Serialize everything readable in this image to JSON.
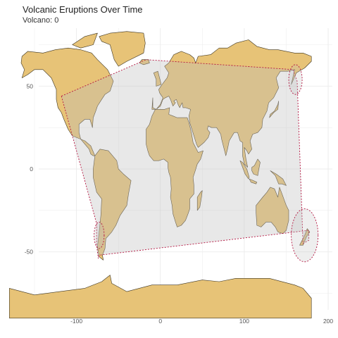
{
  "title": "Volcanic Eruptions Over Time",
  "subtitle": "Volcano: 0",
  "colors": {
    "land": "#e7c377",
    "land_stroke": "#3d3420",
    "grid": "#ebebeb",
    "hull_fill": "#bdbdbd",
    "hull_stroke": "#b3133f"
  },
  "chart_data": {
    "type": "map",
    "xlabel": "",
    "ylabel": "",
    "xlim": [
      -145,
      205
    ],
    "ylim": [
      -85,
      85
    ],
    "x_ticks": [
      -100,
      0,
      100,
      200
    ],
    "y_ticks": [
      -50,
      0,
      50
    ],
    "x_tick_labels": [
      "-100",
      "0",
      "100",
      "200"
    ],
    "y_tick_labels": [
      "-50",
      "0",
      "50"
    ],
    "grid": true,
    "hull": [
      [
        -118,
        44
      ],
      [
        -76,
        -33
      ],
      [
        -76,
        -46
      ],
      [
        -74,
        -54
      ],
      [
        -73,
        -52
      ],
      [
        177,
        -37
      ],
      [
        177,
        -43
      ],
      [
        170,
        -45
      ],
      [
        163,
        53
      ],
      [
        158,
        60
      ],
      [
        -17,
        66
      ],
      [
        -118,
        44
      ]
    ],
    "ellipses": [
      {
        "cx": -73,
        "cy": -40,
        "rx": 6,
        "ry": 8
      },
      {
        "cx": 172,
        "cy": -40,
        "rx": 16,
        "ry": 16
      },
      {
        "cx": 161,
        "cy": 54,
        "rx": 8,
        "ry": 9
      }
    ],
    "land": [
      [
        [
          -165,
          68
        ],
        [
          -158,
          71
        ],
        [
          -140,
          70
        ],
        [
          -125,
          72
        ],
        [
          -110,
          73
        ],
        [
          -95,
          72
        ],
        [
          -82,
          70
        ],
        [
          -75,
          66
        ],
        [
          -63,
          60
        ],
        [
          -56,
          53
        ],
        [
          -60,
          47
        ],
        [
          -66,
          45
        ],
        [
          -70,
          42
        ],
        [
          -75,
          38
        ],
        [
          -77,
          35
        ],
        [
          -80,
          31
        ],
        [
          -81,
          25
        ],
        [
          -84,
          30
        ],
        [
          -90,
          30
        ],
        [
          -97,
          27
        ],
        [
          -97,
          22
        ],
        [
          -95,
          18
        ],
        [
          -90,
          15
        ],
        [
          -85,
          12
        ],
        [
          -83,
          9
        ],
        [
          -80,
          8
        ],
        [
          -78,
          8
        ],
        [
          -83,
          14
        ],
        [
          -90,
          17
        ],
        [
          -105,
          20
        ],
        [
          -110,
          24
        ],
        [
          -115,
          30
        ],
        [
          -118,
          34
        ],
        [
          -122,
          37
        ],
        [
          -124,
          42
        ],
        [
          -124,
          48
        ],
        [
          -130,
          55
        ],
        [
          -140,
          60
        ],
        [
          -150,
          60
        ],
        [
          -158,
          57
        ],
        [
          -165,
          55
        ],
        [
          -162,
          60
        ],
        [
          -166,
          64
        ]
      ],
      [
        [
          -73,
          80
        ],
        [
          -60,
          82
        ],
        [
          -40,
          83
        ],
        [
          -20,
          82
        ],
        [
          -18,
          76
        ],
        [
          -20,
          70
        ],
        [
          -40,
          65
        ],
        [
          -50,
          62
        ],
        [
          -55,
          66
        ],
        [
          -60,
          75
        ],
        [
          -70,
          77
        ]
      ],
      [
        [
          -105,
          75
        ],
        [
          -90,
          80
        ],
        [
          -75,
          82
        ],
        [
          -80,
          75
        ],
        [
          -95,
          73
        ]
      ],
      [
        [
          -78,
          8
        ],
        [
          -72,
          12
        ],
        [
          -62,
          11
        ],
        [
          -52,
          5
        ],
        [
          -50,
          0
        ],
        [
          -44,
          -3
        ],
        [
          -35,
          -7
        ],
        [
          -38,
          -15
        ],
        [
          -40,
          -22
        ],
        [
          -48,
          -28
        ],
        [
          -53,
          -34
        ],
        [
          -58,
          -38
        ],
        [
          -65,
          -42
        ],
        [
          -66,
          -48
        ],
        [
          -69,
          -52
        ],
        [
          -68,
          -55
        ],
        [
          -73,
          -53
        ],
        [
          -75,
          -47
        ],
        [
          -73,
          -38
        ],
        [
          -71,
          -28
        ],
        [
          -70,
          -18
        ],
        [
          -76,
          -14
        ],
        [
          -80,
          -5
        ],
        [
          -80,
          0
        ]
      ],
      [
        [
          -10,
          36
        ],
        [
          -5,
          36
        ],
        [
          0,
          39
        ],
        [
          3,
          43
        ],
        [
          -1,
          46
        ],
        [
          -2,
          48
        ],
        [
          2,
          51
        ],
        [
          5,
          53
        ],
        [
          8,
          55
        ],
        [
          10,
          58
        ],
        [
          5,
          62
        ],
        [
          10,
          64
        ],
        [
          16,
          69
        ],
        [
          25,
          71
        ],
        [
          35,
          69
        ],
        [
          40,
          67
        ],
        [
          42,
          64
        ],
        [
          45,
          68
        ],
        [
          60,
          69
        ],
        [
          70,
          73
        ],
        [
          80,
          73
        ],
        [
          90,
          76
        ],
        [
          105,
          78
        ],
        [
          115,
          74
        ],
        [
          130,
          72
        ],
        [
          140,
          72
        ],
        [
          160,
          70
        ],
        [
          170,
          70
        ],
        [
          180,
          68
        ],
        [
          180,
          65
        ],
        [
          172,
          61
        ],
        [
          162,
          58
        ],
        [
          156,
          51
        ],
        [
          160,
          60
        ],
        [
          152,
          59
        ],
        [
          143,
          59
        ],
        [
          138,
          55
        ],
        [
          141,
          49
        ],
        [
          135,
          43
        ],
        [
          129,
          40
        ],
        [
          127,
          35
        ],
        [
          122,
          30
        ],
        [
          121,
          25
        ],
        [
          116,
          22
        ],
        [
          110,
          21
        ],
        [
          107,
          17
        ],
        [
          109,
          12
        ],
        [
          105,
          9
        ],
        [
          103,
          11
        ],
        [
          100,
          13
        ],
        [
          102,
          6
        ],
        [
          104,
          1
        ],
        [
          100,
          3
        ],
        [
          98,
          8
        ],
        [
          98,
          16
        ],
        [
          95,
          17
        ],
        [
          92,
          22
        ],
        [
          88,
          22
        ],
        [
          82,
          17
        ],
        [
          80,
          12
        ],
        [
          78,
          8
        ],
        [
          73,
          18
        ],
        [
          72,
          21
        ],
        [
          67,
          25
        ],
        [
          61,
          25
        ],
        [
          57,
          26
        ],
        [
          56,
          24
        ],
        [
          59,
          22
        ],
        [
          57,
          19
        ],
        [
          52,
          16
        ],
        [
          45,
          13
        ],
        [
          43,
          15
        ],
        [
          40,
          20
        ],
        [
          35,
          28
        ],
        [
          34,
          32
        ],
        [
          36,
          36
        ],
        [
          30,
          37
        ],
        [
          27,
          37
        ],
        [
          26,
          40
        ],
        [
          23,
          37
        ],
        [
          21,
          39
        ],
        [
          19,
          42
        ],
        [
          16,
          41
        ],
        [
          18,
          40
        ],
        [
          15,
          38
        ],
        [
          12,
          42
        ],
        [
          10,
          44
        ],
        [
          6,
          43
        ],
        [
          3,
          42
        ],
        [
          0,
          38
        ],
        [
          -5,
          36
        ],
        [
          -9,
          37
        ],
        [
          -9,
          43
        ]
      ],
      [
        [
          -17,
          21
        ],
        [
          -17,
          15
        ],
        [
          -15,
          11
        ],
        [
          -13,
          8
        ],
        [
          -8,
          5
        ],
        [
          -2,
          5
        ],
        [
          4,
          6
        ],
        [
          9,
          4
        ],
        [
          9,
          1
        ],
        [
          10,
          -2
        ],
        [
          12,
          -5
        ],
        [
          13,
          -12
        ],
        [
          12,
          -17
        ],
        [
          14,
          -22
        ],
        [
          15,
          -27
        ],
        [
          18,
          -32
        ],
        [
          20,
          -35
        ],
        [
          25,
          -34
        ],
        [
          30,
          -31
        ],
        [
          33,
          -27
        ],
        [
          35,
          -24
        ],
        [
          35,
          -18
        ],
        [
          40,
          -15
        ],
        [
          40,
          -10
        ],
        [
          39,
          -5
        ],
        [
          41,
          -2
        ],
        [
          44,
          3
        ],
        [
          48,
          6
        ],
        [
          51,
          11
        ],
        [
          45,
          10
        ],
        [
          43,
          12
        ],
        [
          39,
          16
        ],
        [
          37,
          22
        ],
        [
          34,
          28
        ],
        [
          32,
          31
        ],
        [
          29,
          31
        ],
        [
          25,
          31
        ],
        [
          20,
          31
        ],
        [
          15,
          32
        ],
        [
          10,
          33
        ],
        [
          11,
          37
        ],
        [
          5,
          36
        ],
        [
          0,
          36
        ],
        [
          -6,
          36
        ],
        [
          -10,
          32
        ],
        [
          -13,
          27
        ],
        [
          -17,
          24
        ]
      ],
      [
        [
          44,
          -25
        ],
        [
          47,
          -23
        ],
        [
          49,
          -17
        ],
        [
          50,
          -13
        ],
        [
          48,
          -14
        ],
        [
          44,
          -17
        ]
      ],
      [
        [
          114,
          -22
        ],
        [
          114,
          -26
        ],
        [
          115,
          -34
        ],
        [
          120,
          -35
        ],
        [
          126,
          -32
        ],
        [
          132,
          -32
        ],
        [
          137,
          -35
        ],
        [
          140,
          -38
        ],
        [
          146,
          -39
        ],
        [
          150,
          -37
        ],
        [
          153,
          -31
        ],
        [
          153,
          -25
        ],
        [
          150,
          -22
        ],
        [
          145,
          -15
        ],
        [
          142,
          -11
        ],
        [
          140,
          -17
        ],
        [
          136,
          -12
        ],
        [
          131,
          -11
        ],
        [
          127,
          -14
        ],
        [
          122,
          -17
        ]
      ],
      [
        [
          166,
          -46
        ],
        [
          170,
          -46
        ],
        [
          174,
          -41
        ],
        [
          178,
          -38
        ],
        [
          175,
          -36
        ],
        [
          172,
          -40
        ],
        [
          168,
          -44
        ]
      ],
      [
        [
          95,
          5
        ],
        [
          98,
          4
        ],
        [
          103,
          0
        ],
        [
          106,
          -5
        ],
        [
          105,
          -6
        ],
        [
          101,
          -3
        ],
        [
          98,
          1
        ]
      ],
      [
        [
          106,
          -6
        ],
        [
          111,
          -7
        ],
        [
          115,
          -8
        ],
        [
          114,
          -9
        ],
        [
          108,
          -8
        ]
      ],
      [
        [
          109,
          1
        ],
        [
          112,
          2
        ],
        [
          116,
          6
        ],
        [
          119,
          4
        ],
        [
          117,
          -1
        ],
        [
          116,
          -4
        ],
        [
          111,
          -3
        ],
        [
          109,
          -1
        ]
      ],
      [
        [
          131,
          -1
        ],
        [
          138,
          -3
        ],
        [
          146,
          -6
        ],
        [
          150,
          -10
        ],
        [
          145,
          -9
        ],
        [
          141,
          -9
        ],
        [
          137,
          -4
        ]
      ],
      [
        [
          -8,
          58
        ],
        [
          -3,
          59
        ],
        [
          0,
          53
        ],
        [
          1,
          51
        ],
        [
          -5,
          50
        ],
        [
          -5,
          54
        ]
      ],
      [
        [
          -25,
          64
        ],
        [
          -22,
          66
        ],
        [
          -14,
          66
        ],
        [
          -13,
          64
        ],
        [
          -20,
          63
        ]
      ],
      [
        [
          130,
          31
        ],
        [
          135,
          34
        ],
        [
          140,
          36
        ],
        [
          141,
          41
        ],
        [
          140,
          39
        ],
        [
          136,
          35
        ],
        [
          131,
          33
        ]
      ],
      [
        [
          -180,
          -72
        ],
        [
          -150,
          -76
        ],
        [
          -120,
          -74
        ],
        [
          -90,
          -72
        ],
        [
          -70,
          -68
        ],
        [
          -60,
          -64
        ],
        [
          -58,
          -69
        ],
        [
          -40,
          -74
        ],
        [
          -10,
          -70
        ],
        [
          20,
          -70
        ],
        [
          50,
          -67
        ],
        [
          70,
          -68
        ],
        [
          90,
          -66
        ],
        [
          110,
          -66
        ],
        [
          130,
          -66
        ],
        [
          160,
          -70
        ],
        [
          170,
          -72
        ],
        [
          180,
          -78
        ],
        [
          180,
          -90
        ],
        [
          -180,
          -90
        ]
      ]
    ]
  }
}
